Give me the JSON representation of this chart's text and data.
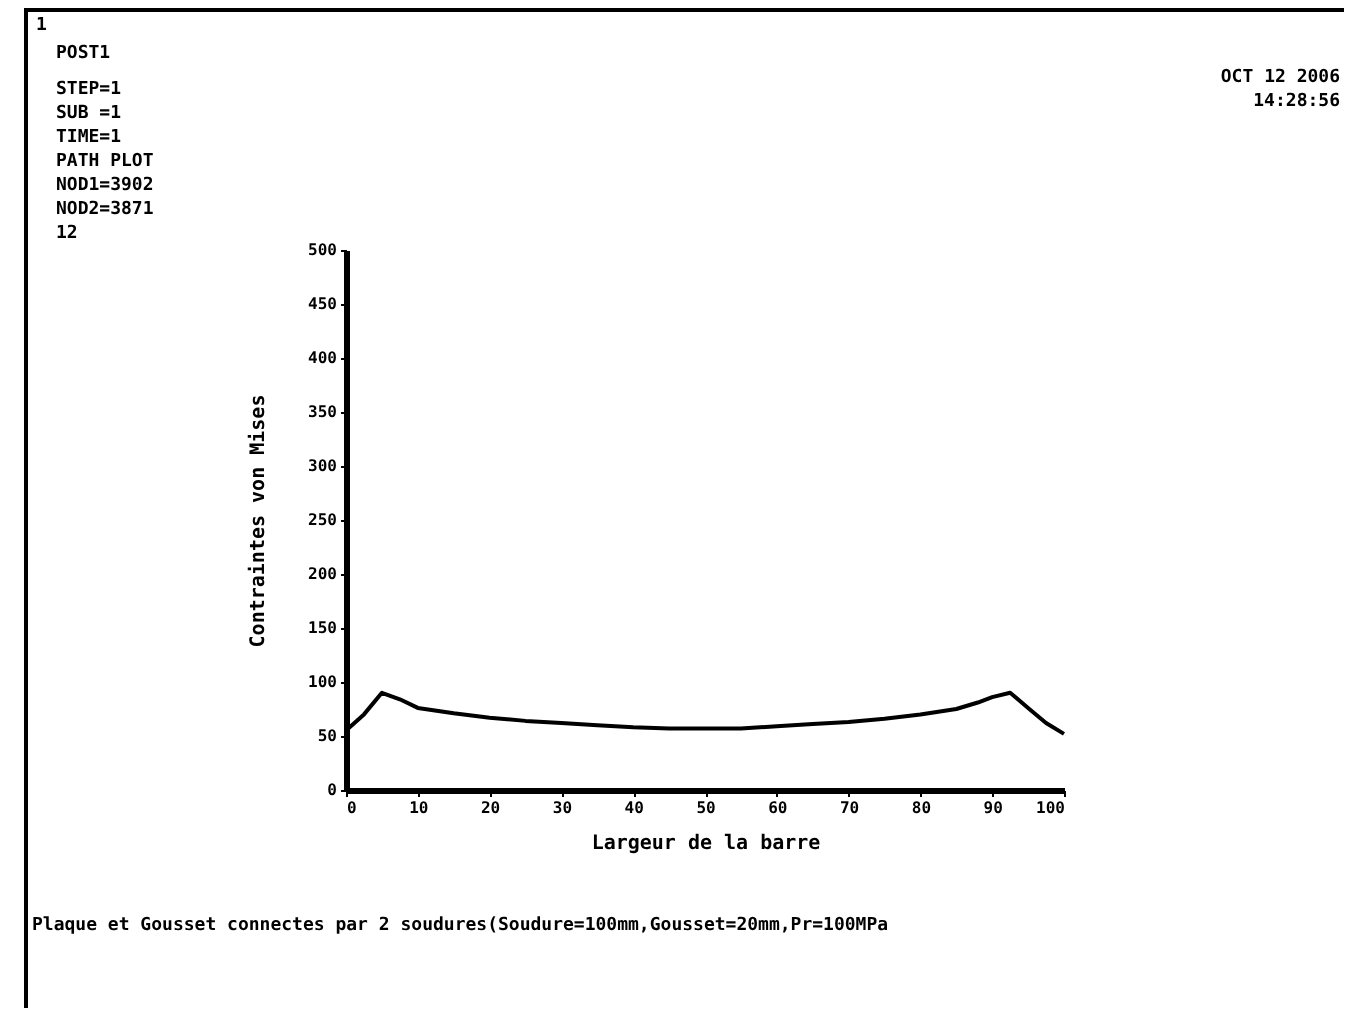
{
  "chart_data": {
    "type": "line",
    "xlabel": "Largeur de la barre",
    "ylabel": "Contraintes von Mises",
    "x": [
      0,
      2.5,
      5,
      7.5,
      10,
      15,
      20,
      25,
      30,
      35,
      40,
      45,
      50,
      55,
      60,
      65,
      70,
      75,
      80,
      85,
      88,
      90,
      92.5,
      95,
      97.5,
      100
    ],
    "series": [
      {
        "color": "#000000",
        "values": [
          55,
          70,
          90,
          84,
          76,
          71,
          67,
          64,
          62,
          60,
          58,
          57,
          57,
          57,
          59,
          61,
          63,
          66,
          70,
          75,
          81,
          86,
          90,
          76,
          62,
          52
        ]
      }
    ],
    "xlim": [
      0,
      100
    ],
    "xticks": [
      0,
      10,
      20,
      30,
      40,
      50,
      60,
      70,
      80,
      90,
      100
    ],
    "ylim": [
      0,
      500
    ],
    "yticks": [
      0,
      50,
      100,
      150,
      200,
      250,
      300,
      350,
      400,
      450,
      500
    ],
    "grid": false,
    "marker": "none",
    "line_style": "solid",
    "annotations": [
      "1",
      "POST1",
      "STEP=1",
      "SUB =1",
      "TIME=1",
      "PATH PLOT",
      "NOD1=3902",
      "NOD2=3871",
      "12",
      "OCT 12 2006",
      "14:28:56",
      "Plaque et Gousset connectes par 2 soudures(Soudure=100mm,Gousset=20mm,Pr=100MPa"
    ]
  }
}
